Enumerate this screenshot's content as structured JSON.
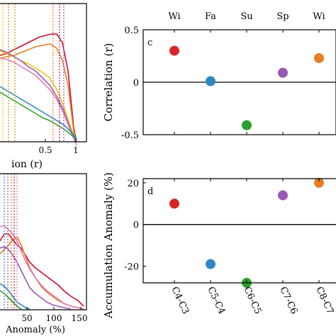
{
  "chart_data": [
    {
      "panel": "left-top",
      "type": "line",
      "xlabel": "ion (r)",
      "x_ticks": [
        "0.5",
        "1"
      ],
      "colors": [
        "#c8102e",
        "#e67e22",
        "#f1c40f",
        "#9b59b6",
        "#e377c2",
        "#2e86c1",
        "#2ca02c"
      ]
    },
    {
      "panel": "right-top",
      "type": "scatter",
      "label": "c",
      "ylabel": "Correlation (r)",
      "ylim": [
        -0.5,
        0.5
      ],
      "y_ticks": [
        "0.5",
        "0",
        "-0.5"
      ],
      "top_labels": [
        "Wi",
        "Fa",
        "Su",
        "Sp",
        "Wi"
      ],
      "points": [
        {
          "x": 1,
          "y": 0.3,
          "color": "#d62728"
        },
        {
          "x": 2,
          "y": 0.01,
          "color": "#2e86c1"
        },
        {
          "x": 3,
          "y": -0.41,
          "color": "#2ca02c"
        },
        {
          "x": 4,
          "y": 0.09,
          "color": "#9b59b6"
        },
        {
          "x": 5,
          "y": 0.23,
          "color": "#e67e22"
        }
      ]
    },
    {
      "panel": "left-bottom",
      "type": "line",
      "xlabel": "Anomaly (%)",
      "x_ticks": [
        "50",
        "100",
        "150"
      ],
      "colors": [
        "#c8102e",
        "#e67e22",
        "#e377c2",
        "#9b59b6",
        "#2e86c1",
        "#2ca02c"
      ]
    },
    {
      "panel": "right-bottom",
      "type": "scatter",
      "label": "d",
      "ylabel": "Accumulation Anomaly (%)",
      "ylim": [
        -28,
        22
      ],
      "y_ticks": [
        "20",
        "0",
        "-20"
      ],
      "x_ticks": [
        "C4-C3",
        "C5-C4",
        "C6-C5",
        "C7-C6",
        "C8-C7"
      ],
      "points": [
        {
          "x": 1,
          "y": 10,
          "color": "#d62728"
        },
        {
          "x": 2,
          "y": -19,
          "color": "#2e86c1"
        },
        {
          "x": 3,
          "y": -28,
          "color": "#2ca02c"
        },
        {
          "x": 4,
          "y": 14,
          "color": "#9b59b6"
        },
        {
          "x": 5,
          "y": 20,
          "color": "#e67e22"
        }
      ]
    }
  ]
}
